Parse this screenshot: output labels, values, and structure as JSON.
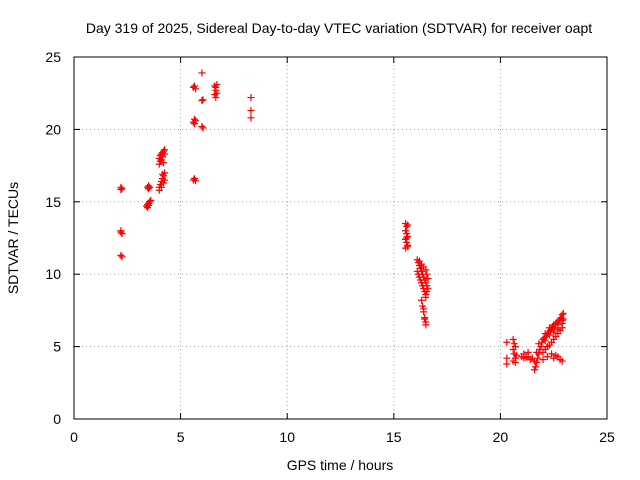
{
  "chart_data": {
    "type": "scatter",
    "title": "Day 319 of 2025, Sidereal Day-to-day VTEC variation (SDTVAR) for receiver oapt",
    "xlabel": "GPS time / hours",
    "ylabel": "SDTVAR / TECUs",
    "xlim": [
      0,
      25
    ],
    "ylim": [
      0,
      25
    ],
    "xticks": [
      0,
      5,
      10,
      15,
      20,
      25
    ],
    "yticks": [
      0,
      5,
      10,
      15,
      20,
      25
    ],
    "grid": true,
    "marker": "+",
    "color": "#ff0000",
    "series": [
      {
        "name": "SDTVAR",
        "points": [
          [
            2.2,
            16.0
          ],
          [
            2.25,
            15.9
          ],
          [
            2.2,
            15.85
          ],
          [
            2.2,
            13.0
          ],
          [
            2.25,
            12.8
          ],
          [
            2.2,
            12.9
          ],
          [
            2.2,
            11.3
          ],
          [
            2.25,
            11.2
          ],
          [
            3.45,
            16.0
          ],
          [
            3.5,
            16.1
          ],
          [
            3.55,
            16.0
          ],
          [
            3.5,
            15.9
          ],
          [
            3.4,
            14.7
          ],
          [
            3.45,
            14.8
          ],
          [
            3.5,
            14.9
          ],
          [
            3.55,
            15.0
          ],
          [
            3.6,
            15.1
          ],
          [
            3.45,
            14.6
          ],
          [
            3.5,
            14.75
          ],
          [
            4.0,
            18.0
          ],
          [
            4.05,
            18.2
          ],
          [
            4.1,
            18.3
          ],
          [
            4.15,
            18.4
          ],
          [
            4.2,
            18.5
          ],
          [
            4.25,
            18.6
          ],
          [
            4.0,
            17.6
          ],
          [
            4.05,
            17.8
          ],
          [
            4.1,
            17.9
          ],
          [
            4.15,
            18.1
          ],
          [
            4.2,
            17.7
          ],
          [
            4.25,
            18.3
          ],
          [
            4.0,
            16.0
          ],
          [
            4.05,
            16.2
          ],
          [
            4.1,
            16.4
          ],
          [
            4.15,
            16.6
          ],
          [
            4.2,
            16.8
          ],
          [
            4.25,
            17.0
          ],
          [
            4.1,
            16.0
          ],
          [
            4.2,
            16.3
          ],
          [
            4.25,
            16.5
          ],
          [
            4.0,
            15.8
          ],
          [
            4.15,
            16.9
          ],
          [
            5.6,
            22.9
          ],
          [
            5.65,
            23.0
          ],
          [
            5.7,
            22.8
          ],
          [
            5.6,
            20.5
          ],
          [
            5.65,
            20.7
          ],
          [
            5.7,
            20.6
          ],
          [
            5.65,
            20.4
          ],
          [
            5.6,
            16.5
          ],
          [
            5.65,
            16.6
          ],
          [
            5.7,
            16.45
          ],
          [
            6.0,
            23.9
          ],
          [
            6.0,
            22.0
          ],
          [
            6.05,
            22.05
          ],
          [
            6.0,
            20.2
          ],
          [
            6.05,
            20.1
          ],
          [
            6.6,
            23.0
          ],
          [
            6.65,
            22.9
          ],
          [
            6.7,
            23.1
          ],
          [
            6.65,
            22.7
          ],
          [
            6.6,
            22.4
          ],
          [
            6.7,
            22.5
          ],
          [
            6.65,
            22.2
          ],
          [
            8.3,
            22.2
          ],
          [
            8.3,
            21.3
          ],
          [
            8.3,
            20.8
          ],
          [
            15.55,
            13.5
          ],
          [
            15.6,
            13.3
          ],
          [
            15.65,
            13.4
          ],
          [
            15.55,
            13.0
          ],
          [
            15.6,
            12.8
          ],
          [
            15.65,
            12.6
          ],
          [
            15.55,
            12.4
          ],
          [
            15.6,
            12.2
          ],
          [
            15.65,
            12.0
          ],
          [
            15.55,
            11.8
          ],
          [
            15.6,
            12.5
          ],
          [
            15.65,
            11.9
          ],
          [
            16.1,
            11.0
          ],
          [
            16.15,
            10.8
          ],
          [
            16.2,
            10.6
          ],
          [
            16.25,
            10.4
          ],
          [
            16.3,
            10.2
          ],
          [
            16.35,
            10.0
          ],
          [
            16.4,
            9.8
          ],
          [
            16.45,
            9.6
          ],
          [
            16.5,
            9.4
          ],
          [
            16.55,
            9.2
          ],
          [
            16.1,
            10.2
          ],
          [
            16.15,
            10.0
          ],
          [
            16.2,
            9.8
          ],
          [
            16.25,
            9.6
          ],
          [
            16.3,
            9.4
          ],
          [
            16.35,
            9.2
          ],
          [
            16.4,
            9.0
          ],
          [
            16.45,
            8.8
          ],
          [
            16.5,
            8.6
          ],
          [
            16.55,
            8.8
          ],
          [
            16.2,
            10.9
          ],
          [
            16.3,
            10.7
          ],
          [
            16.4,
            10.5
          ],
          [
            16.5,
            10.3
          ],
          [
            16.55,
            10.0
          ],
          [
            16.6,
            9.7
          ],
          [
            16.6,
            9.0
          ],
          [
            16.5,
            8.4
          ],
          [
            16.3,
            8.2
          ],
          [
            16.35,
            7.8
          ],
          [
            16.4,
            7.4
          ],
          [
            16.45,
            7.0
          ],
          [
            16.5,
            6.7
          ],
          [
            16.5,
            6.5
          ],
          [
            16.45,
            6.9
          ],
          [
            16.4,
            7.6
          ],
          [
            20.3,
            5.3
          ],
          [
            20.3,
            4.2
          ],
          [
            20.3,
            3.8
          ],
          [
            20.6,
            5.5
          ],
          [
            20.65,
            5.2
          ],
          [
            20.7,
            5.0
          ],
          [
            20.6,
            4.8
          ],
          [
            20.65,
            4.5
          ],
          [
            20.7,
            4.2
          ],
          [
            20.6,
            4.0
          ],
          [
            20.7,
            3.9
          ],
          [
            20.75,
            4.4
          ],
          [
            21.0,
            4.3
          ],
          [
            21.1,
            4.2
          ],
          [
            21.2,
            4.25
          ],
          [
            21.3,
            4.3
          ],
          [
            21.4,
            4.1
          ],
          [
            21.5,
            4.2
          ],
          [
            21.1,
            4.5
          ],
          [
            21.3,
            4.6
          ],
          [
            21.6,
            3.4
          ],
          [
            21.65,
            3.6
          ],
          [
            21.7,
            3.9
          ],
          [
            21.75,
            4.2
          ],
          [
            21.8,
            4.5
          ],
          [
            21.85,
            4.8
          ],
          [
            21.9,
            5.0
          ],
          [
            21.6,
            4.0
          ],
          [
            21.7,
            4.6
          ],
          [
            21.8,
            5.2
          ],
          [
            21.95,
            5.3
          ],
          [
            22.0,
            5.5
          ],
          [
            22.05,
            5.6
          ],
          [
            22.1,
            5.4
          ],
          [
            22.15,
            5.7
          ],
          [
            22.2,
            5.9
          ],
          [
            22.25,
            6.0
          ],
          [
            22.3,
            5.8
          ],
          [
            22.35,
            6.1
          ],
          [
            22.4,
            6.2
          ],
          [
            22.0,
            4.6
          ],
          [
            22.1,
            4.8
          ],
          [
            22.2,
            5.0
          ],
          [
            22.3,
            5.1
          ],
          [
            22.4,
            5.3
          ],
          [
            22.5,
            5.5
          ],
          [
            22.6,
            5.7
          ],
          [
            22.7,
            5.9
          ],
          [
            22.8,
            6.1
          ],
          [
            22.9,
            6.3
          ],
          [
            22.45,
            6.4
          ],
          [
            22.5,
            6.5
          ],
          [
            22.55,
            6.3
          ],
          [
            22.6,
            6.6
          ],
          [
            22.65,
            6.7
          ],
          [
            22.7,
            6.5
          ],
          [
            22.75,
            6.8
          ],
          [
            22.8,
            6.9
          ],
          [
            22.85,
            7.0
          ],
          [
            22.9,
            7.2
          ],
          [
            22.95,
            7.3
          ],
          [
            22.9,
            6.8
          ],
          [
            22.0,
            4.1
          ],
          [
            22.2,
            4.3
          ],
          [
            22.4,
            4.5
          ],
          [
            22.6,
            4.4
          ],
          [
            22.8,
            4.1
          ],
          [
            22.9,
            4.0
          ],
          [
            22.5,
            4.2
          ],
          [
            22.7,
            4.3
          ],
          [
            22.1,
            5.9
          ],
          [
            22.3,
            6.3
          ],
          [
            22.5,
            6.0
          ],
          [
            22.7,
            6.2
          ],
          [
            22.9,
            6.6
          ],
          [
            22.95,
            6.9
          ]
        ]
      }
    ]
  }
}
